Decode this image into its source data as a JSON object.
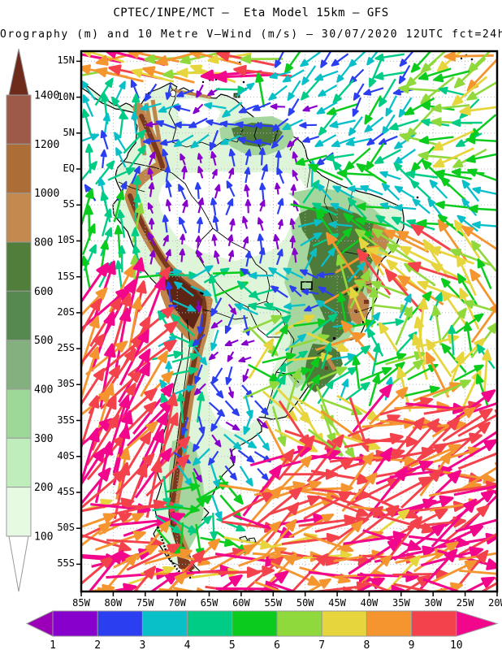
{
  "header": {
    "title": "CPTEC/INPE/MCT –  Eta Model 15km – GFS",
    "subtitle": "Orography (m) and 10 Metre V–Wind (m/s) – 30/07/2020 12UTC fct=24h"
  },
  "map": {
    "lat_labels": [
      "15N",
      "10N",
      "5N",
      "EQ",
      "5S",
      "10S",
      "15S",
      "20S",
      "25S",
      "30S",
      "35S",
      "40S",
      "45S",
      "50S",
      "55S"
    ],
    "lon_labels": [
      "85W",
      "80W",
      "75W",
      "70W",
      "65W",
      "60W",
      "55W",
      "50W",
      "45W",
      "40W",
      "35W",
      "30W",
      "25W",
      "20W"
    ],
    "grid_color": "#b8b8b8",
    "frame_color": "#000000"
  },
  "terrain_palette": {
    "ocean": "#ffffff",
    "land_base": "#DFF5DA",
    "lowland": "#FFFFFF",
    "green_mid": "#A5D69E",
    "green_dark": "#4E7A3A",
    "tan": "#C0854B",
    "brown_dark": "#7A381E",
    "maroon": "#5E2414"
  },
  "elevation_legend": {
    "unit": "m",
    "tick_labels": [
      "1400",
      "1200",
      "1000",
      "800",
      "600",
      "500",
      "400",
      "300",
      "200",
      "100"
    ],
    "segment_colors_top_to_bottom": [
      "#9E5A49",
      "#AD6D36",
      "#C4894E",
      "#527E3B",
      "#55894F",
      "#83B07E",
      "#9ED898",
      "#BFEEBC",
      "#E6FAE2"
    ],
    "above_max_arrow_color": "#6E2A1B",
    "below_min_arrow_color": "#FFFFFF"
  },
  "wind_legend": {
    "unit": "m/s",
    "tick_labels": [
      "1",
      "2",
      "3",
      "4",
      "5",
      "6",
      "7",
      "8",
      "9",
      "10"
    ],
    "segment_colors": [
      "#8800CC",
      "#2B3FF0",
      "#09BFC8",
      "#00CC85",
      "#0BCC1E",
      "#8FD93D",
      "#E6D53C",
      "#F4952F",
      "#F4424C"
    ],
    "left_arrow_color": "#9B00B8",
    "right_arrow_color": "#F2068C"
  },
  "wind_field": {
    "speed_class_colors": [
      "#8800CC",
      "#2B3FF0",
      "#09BFC8",
      "#00CC85",
      "#0BCC1E",
      "#8FD93D",
      "#E6D53C",
      "#F4952F",
      "#F4424C",
      "#F2068C"
    ],
    "seed": 20200730,
    "regions": [
      {
        "name": "caribbean-band",
        "lon_w": [
          85,
          55
        ],
        "lat": [
          11,
          16.4
        ],
        "dir_deg": 178,
        "jitter_deg": 18,
        "speed_range": [
          6.5,
          10.8
        ]
      },
      {
        "name": "amazon-interior",
        "lon_w": [
          74,
          50
        ],
        "lat": [
          -13,
          3
        ],
        "dir_deg": 92,
        "jitter_deg": 26,
        "speed_range": [
          1,
          2.4
        ]
      },
      {
        "name": "guiana-coastal",
        "lon_w": [
          62,
          47
        ],
        "lat": [
          3,
          9.5
        ],
        "dir_deg": 205,
        "jitter_deg": 40,
        "speed_range": [
          1.8,
          3.6
        ]
      },
      {
        "name": "venezuela-llanos",
        "lon_w": [
          75,
          62
        ],
        "lat": [
          2,
          11
        ],
        "dir_deg": 215,
        "jitter_deg": 55,
        "speed_range": [
          1.4,
          3.2
        ]
      },
      {
        "name": "pacific-equatorial",
        "lon_w": [
          85,
          74
        ],
        "lat": [
          -4,
          11
        ],
        "dir_deg": 75,
        "jitter_deg": 55,
        "speed_range": [
          2.5,
          5
        ]
      },
      {
        "name": "n-atlantic-central",
        "lon_w": [
          55,
          32
        ],
        "lat": [
          0,
          16.4
        ],
        "dir_deg": 218,
        "jitter_deg": 30,
        "speed_range": [
          2.6,
          5.2
        ]
      },
      {
        "name": "n-atlantic-east",
        "lon_w": [
          32,
          20
        ],
        "lat": [
          0,
          16.4
        ],
        "dir_deg": 196,
        "jitter_deg": 32,
        "speed_range": [
          4,
          8.2
        ]
      },
      {
        "name": "equatorial-atlantic",
        "lon_w": [
          47,
          20
        ],
        "lat": [
          -8,
          0
        ],
        "dir_deg": 152,
        "jitter_deg": 28,
        "speed_range": [
          3,
          6
        ]
      },
      {
        "name": "ne-brazil-offshore",
        "lon_w": [
          40,
          28
        ],
        "lat": [
          -18,
          -8
        ],
        "dir_deg": 144,
        "jitter_deg": 22,
        "speed_range": [
          6,
          9.6
        ]
      },
      {
        "name": "east-atlantic-mid",
        "lon_w": [
          28,
          20
        ],
        "lat": [
          -20,
          -8
        ],
        "dir_deg": 140,
        "jitter_deg": 30,
        "speed_range": [
          5,
          8.4
        ]
      },
      {
        "name": "brazil-central",
        "lon_w": [
          61,
          46
        ],
        "lat": [
          -20,
          -13
        ],
        "dir_deg": 172,
        "jitter_deg": 40,
        "speed_range": [
          2,
          4.6
        ]
      },
      {
        "name": "brazil-east-highlands",
        "lon_w": [
          46,
          36
        ],
        "lat": [
          -24,
          -11
        ],
        "dir_deg": 58,
        "jitter_deg": 75,
        "speed_range": [
          3,
          9
        ]
      },
      {
        "name": "atlantic-subtropical",
        "lon_w": [
          36,
          20
        ],
        "lat": [
          -32,
          -20
        ],
        "dir_deg": 72,
        "jitter_deg": 60,
        "speed_range": [
          4,
          8.6
        ]
      },
      {
        "name": "south-brazil",
        "lon_w": [
          58,
          45
        ],
        "lat": [
          -32,
          -20
        ],
        "dir_deg": 25,
        "jitter_deg": 70,
        "speed_range": [
          3.5,
          7.6
        ]
      },
      {
        "name": "plata-offshore",
        "lon_w": [
          56,
          40
        ],
        "lat": [
          -40,
          -32
        ],
        "dir_deg": -38,
        "jitter_deg": 36,
        "speed_range": [
          6.5,
          9.6
        ]
      },
      {
        "name": "gran-chaco",
        "lon_w": [
          67,
          58
        ],
        "lat": [
          -32,
          -19
        ],
        "dir_deg": -105,
        "jitter_deg": 60,
        "speed_range": [
          1.2,
          3.2
        ]
      },
      {
        "name": "andes-central",
        "lon_w": [
          72,
          66
        ],
        "lat": [
          -35,
          -15
        ],
        "dir_deg": 60,
        "jitter_deg": 85,
        "speed_range": [
          2.4,
          5
        ]
      },
      {
        "name": "central-argentina",
        "lon_w": [
          71,
          56
        ],
        "lat": [
          -44,
          -32
        ],
        "dir_deg": -85,
        "jitter_deg": 55,
        "speed_range": [
          1.6,
          3.8
        ]
      },
      {
        "name": "patagonia",
        "lon_w": [
          73,
          61
        ],
        "lat": [
          -53,
          -44
        ],
        "dir_deg": -25,
        "jitter_deg": 70,
        "speed_range": [
          3.5,
          6.2
        ]
      },
      {
        "name": "pacific-chile",
        "lon_w": [
          85,
          71
        ],
        "lat": [
          -45,
          -16
        ],
        "dir_deg": 58,
        "jitter_deg": 22,
        "speed_range": [
          8.6,
          10.9
        ]
      },
      {
        "name": "peru-coastal-ocean",
        "lon_w": [
          85,
          74
        ],
        "lat": [
          -16,
          -4
        ],
        "dir_deg": 80,
        "jitter_deg": 24,
        "speed_range": [
          4,
          6.6
        ]
      },
      {
        "name": "s-atlantic-westerlies",
        "lon_w": [
          61,
          20
        ],
        "lat": [
          -45,
          -32
        ],
        "dir_deg": 22,
        "jitter_deg": 34,
        "speed_range": [
          8.4,
          10.9
        ]
      },
      {
        "name": "far-south",
        "lon_w": [
          85,
          20
        ],
        "lat": [
          -58.8,
          -45
        ],
        "dir_deg": 14,
        "jitter_deg": 38,
        "speed_range": [
          7.8,
          10.9
        ]
      },
      {
        "name": "default",
        "lon_w": [
          85,
          20
        ],
        "lat": [
          -58.8,
          16.4
        ],
        "dir_deg": 45,
        "jitter_deg": 60,
        "speed_range": [
          3,
          6
        ]
      }
    ]
  }
}
